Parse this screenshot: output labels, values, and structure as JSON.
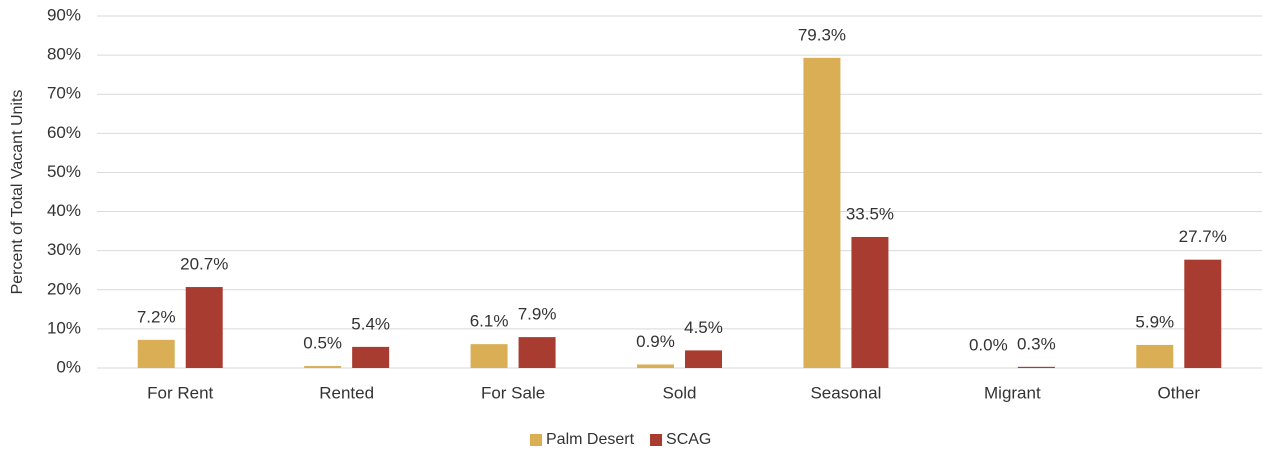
{
  "chart_data": {
    "type": "bar",
    "y_label": "Percent of Total Vacant Units",
    "categories": [
      "For Rent",
      "Rented",
      "For Sale",
      "Sold",
      "Seasonal",
      "Migrant",
      "Other"
    ],
    "series": [
      {
        "name": "Palm Desert",
        "color": "#d9ae55",
        "values": [
          7.2,
          0.5,
          6.1,
          0.9,
          79.3,
          0.0,
          5.9
        ],
        "value_labels": [
          "7.2%",
          "0.5%",
          "6.1%",
          "0.9%",
          "79.3%",
          "0.0%",
          "5.9%"
        ]
      },
      {
        "name": "SCAG",
        "color": "#a93c30",
        "values": [
          20.7,
          5.4,
          7.9,
          4.5,
          33.5,
          0.3,
          27.7
        ],
        "value_labels": [
          "20.7%",
          "5.4%",
          "7.9%",
          "4.5%",
          "33.5%",
          "0.3%",
          "27.7%"
        ]
      }
    ],
    "ylim": [
      0,
      90
    ],
    "yticks": [
      {
        "value": 0,
        "label": "0%"
      },
      {
        "value": 10,
        "label": "10%"
      },
      {
        "value": 20,
        "label": "20%"
      },
      {
        "value": 30,
        "label": "30%"
      },
      {
        "value": 40,
        "label": "40%"
      },
      {
        "value": 50,
        "label": "50%"
      },
      {
        "value": 60,
        "label": "60%"
      },
      {
        "value": 70,
        "label": "70%"
      },
      {
        "value": 80,
        "label": "80%"
      },
      {
        "value": 90,
        "label": "90%"
      }
    ],
    "grid": true,
    "legend": "bottom"
  }
}
